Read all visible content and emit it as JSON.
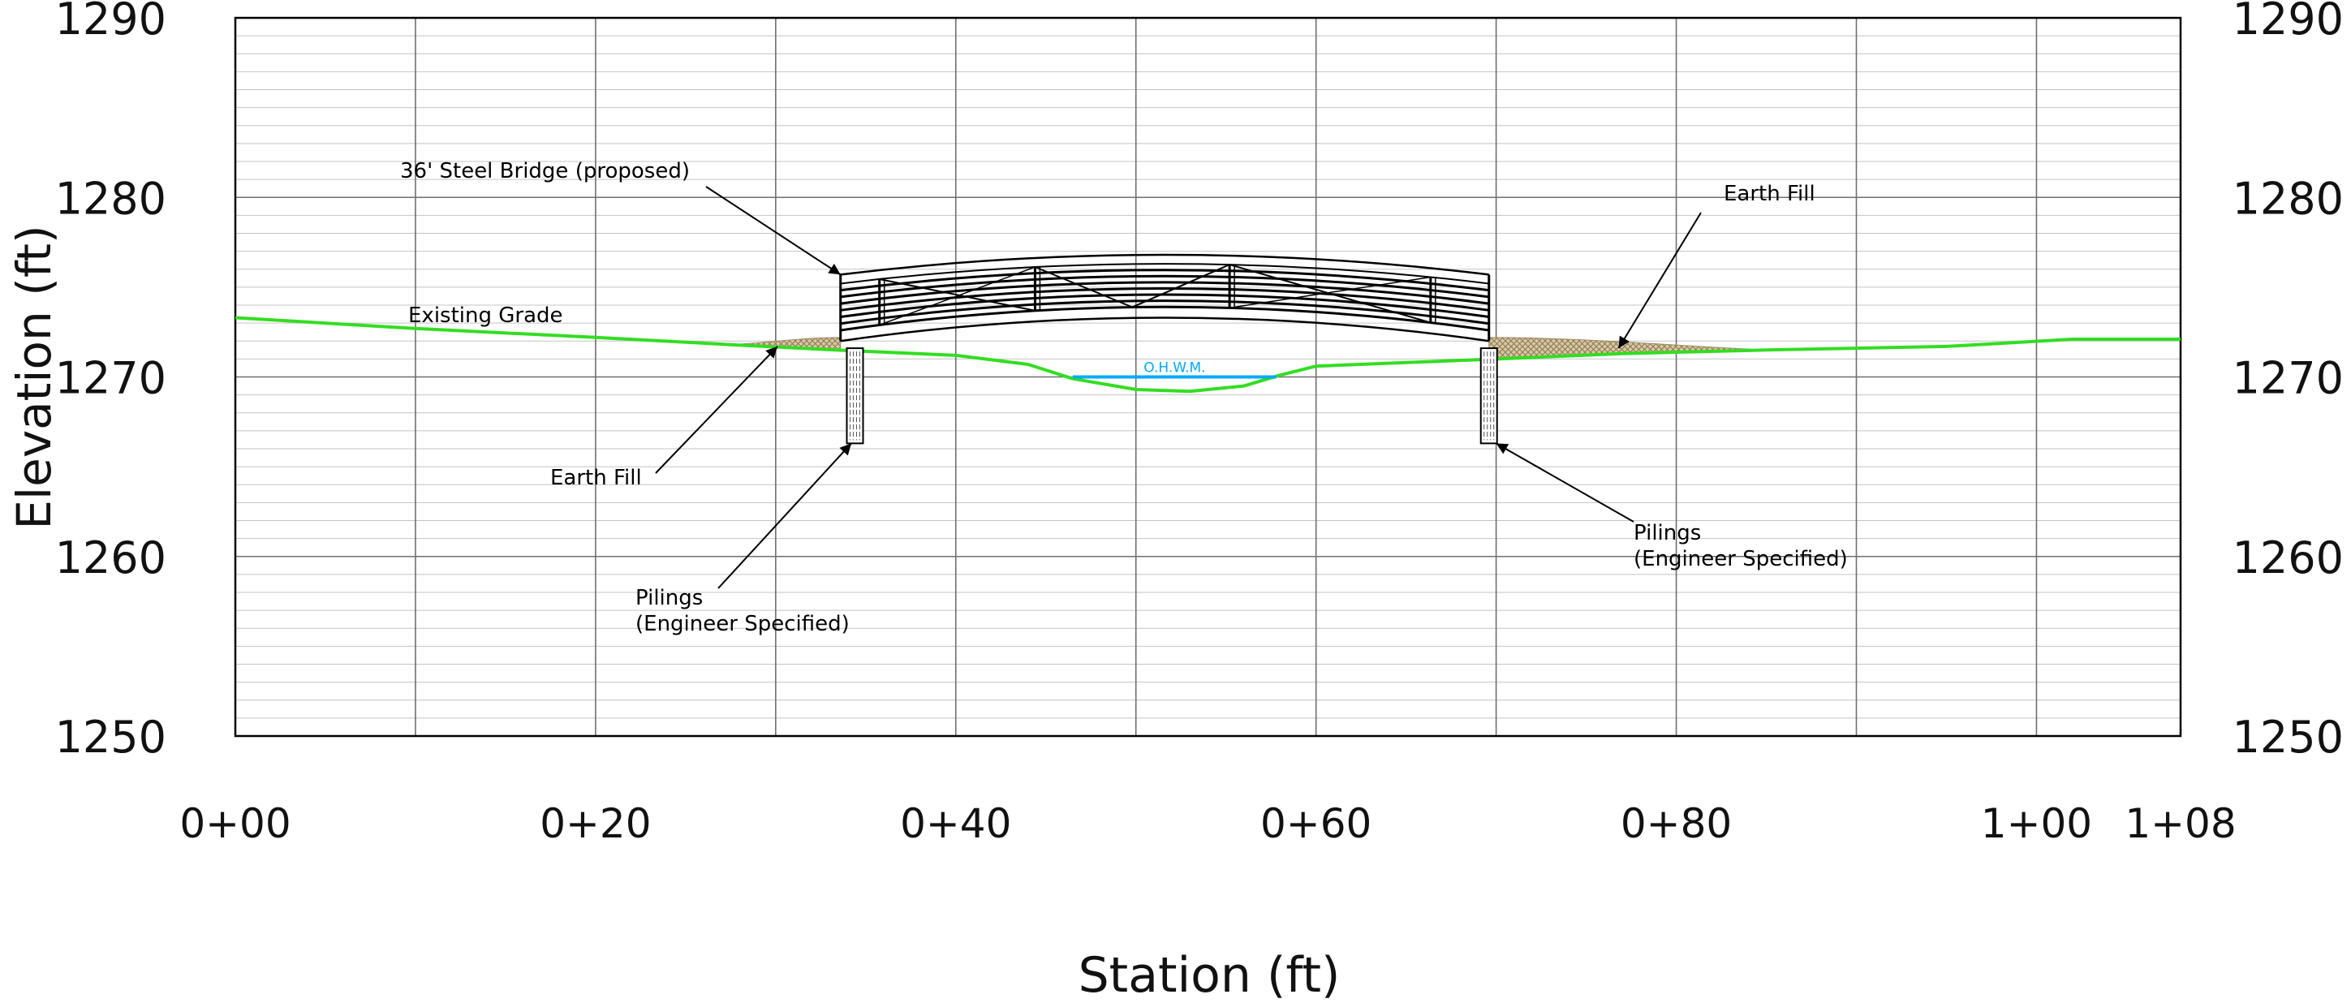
{
  "diagram": {
    "x_axis_label": "Station (ft)",
    "y_axis_label": "Elevation (ft)",
    "colors": {
      "grade": "#33dd22",
      "water": "#00aaff",
      "fill": "#b8a27a",
      "grid_major": "#6f6f6f",
      "grid_minor": "#c4c4c4",
      "ink": "#000000"
    }
  },
  "chart_data": {
    "type": "line",
    "title": "",
    "xlabel": "Station (ft)",
    "ylabel": "Elevation (ft)",
    "xlim": [
      0,
      108
    ],
    "ylim": [
      1250,
      1290
    ],
    "grid": true,
    "x_ticks": [
      {
        "value": 0,
        "label": "0+00"
      },
      {
        "value": 20,
        "label": "0+20"
      },
      {
        "value": 40,
        "label": "0+40"
      },
      {
        "value": 60,
        "label": "0+60"
      },
      {
        "value": 80,
        "label": "0+80"
      },
      {
        "value": 100,
        "label": "1+00"
      },
      {
        "value": 108,
        "label": "1+08"
      }
    ],
    "y_ticks": [
      1250,
      1260,
      1270,
      1280,
      1290
    ],
    "existing_grade": [
      [
        0,
        1273.3
      ],
      [
        10,
        1272.7
      ],
      [
        20,
        1272.2
      ],
      [
        27.5,
        1271.8
      ],
      [
        33.3,
        1271.5
      ],
      [
        40,
        1271.2
      ],
      [
        44,
        1270.7
      ],
      [
        46.5,
        1269.9
      ],
      [
        50,
        1269.3
      ],
      [
        53,
        1269.2
      ],
      [
        56,
        1269.5
      ],
      [
        58,
        1270.1
      ],
      [
        60,
        1270.6
      ],
      [
        65,
        1270.8
      ],
      [
        70,
        1271.0
      ],
      [
        77,
        1271.3
      ],
      [
        85,
        1271.5
      ],
      [
        95,
        1271.7
      ],
      [
        102,
        1272.1
      ],
      [
        108,
        1272.1
      ]
    ],
    "water_surface": {
      "label": "O.H.W.M.",
      "x_start": 46.5,
      "x_end": 57.8,
      "elevation": 1270.0
    },
    "bridge": {
      "label": "36' Steel Bridge (proposed)",
      "x_start": 33.6,
      "x_end": 69.6,
      "deck_end_elevation": 1272.0,
      "deck_mid_elevation": 1273.3,
      "top_end_elevation": 1275.7,
      "top_mid_elevation": 1276.8
    },
    "pilings": [
      {
        "x": 34.4,
        "top": 1271.6,
        "bottom": 1266.3
      },
      {
        "x": 69.6,
        "top": 1271.6,
        "bottom": 1266.3
      }
    ],
    "earth_fill": [
      {
        "x_start": 27.5,
        "x_end": 33.6,
        "top_elevation": 1272.2
      },
      {
        "x_start": 69.6,
        "x_end": 85.0,
        "top_elevation": 1272.2
      }
    ],
    "annotations": [
      {
        "id": "bridge",
        "lines": [
          "36' Steel Bridge (proposed)"
        ],
        "arrow_to": [
          33.6,
          1275.7
        ]
      },
      {
        "id": "grade",
        "lines": [
          "Existing Grade"
        ]
      },
      {
        "id": "fill-left",
        "lines": [
          "Earth Fill"
        ],
        "arrow_to": [
          30.1,
          1271.7
        ]
      },
      {
        "id": "fill-right",
        "lines": [
          "Earth Fill"
        ],
        "arrow_to": [
          76.8,
          1271.6
        ]
      },
      {
        "id": "pilings-left",
        "lines": [
          "Pilings",
          "(Engineer Specified)"
        ],
        "arrow_to": [
          34.2,
          1266.3
        ]
      },
      {
        "id": "pilings-right",
        "lines": [
          "Pilings",
          "(Engineer Specified)"
        ],
        "arrow_to": [
          70.0,
          1266.3
        ]
      }
    ]
  }
}
